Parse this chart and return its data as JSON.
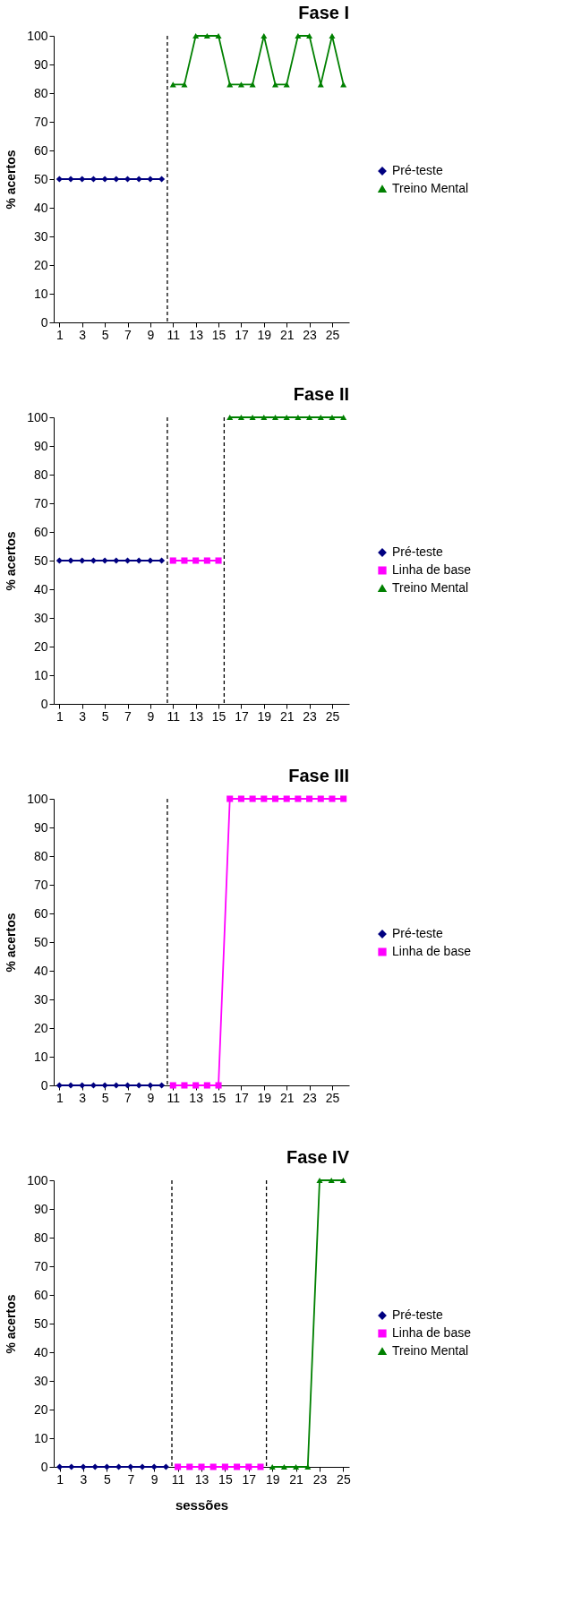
{
  "chart_data": [
    {
      "type": "line",
      "title": "Fase I",
      "ylabel": "% acertos",
      "xlim": [
        0.5,
        26.5
      ],
      "xticks": [
        1,
        3,
        5,
        7,
        9,
        11,
        13,
        15,
        17,
        19,
        21,
        23,
        25
      ],
      "ylim": [
        0,
        100
      ],
      "yticks": [
        0,
        10,
        20,
        30,
        40,
        50,
        60,
        70,
        80,
        90,
        100
      ],
      "legend": "right",
      "ref_lines": [
        {
          "axis": "x",
          "value": 10.5,
          "line_style": "dashed",
          "color": "#000000"
        }
      ],
      "series": [
        {
          "name": "Pré-teste",
          "color": "#000080",
          "marker": "diamond",
          "x": [
            1,
            2,
            3,
            4,
            5,
            6,
            7,
            8,
            9,
            10
          ],
          "values": [
            50,
            50,
            50,
            50,
            50,
            50,
            50,
            50,
            50,
            50
          ]
        },
        {
          "name": "Treino Mental",
          "color": "#008000",
          "marker": "triangle",
          "x": [
            11,
            12,
            13,
            14,
            15,
            16,
            17,
            18,
            19,
            20,
            21,
            22,
            23,
            24,
            25,
            26
          ],
          "values": [
            83,
            83,
            100,
            100,
            100,
            83,
            83,
            83,
            100,
            83,
            83,
            100,
            100,
            83,
            100,
            83
          ]
        }
      ]
    },
    {
      "type": "line",
      "title": "Fase II",
      "ylabel": "% acertos",
      "xlim": [
        0.5,
        26.5
      ],
      "xticks": [
        1,
        3,
        5,
        7,
        9,
        11,
        13,
        15,
        17,
        19,
        21,
        23,
        25
      ],
      "ylim": [
        0,
        100
      ],
      "yticks": [
        0,
        10,
        20,
        30,
        40,
        50,
        60,
        70,
        80,
        90,
        100
      ],
      "legend": "right",
      "ref_lines": [
        {
          "axis": "x",
          "value": 10.5,
          "line_style": "dashed",
          "color": "#000000"
        },
        {
          "axis": "x",
          "value": 15.5,
          "line_style": "dashed",
          "color": "#000000"
        }
      ],
      "series": [
        {
          "name": "Pré-teste",
          "color": "#000080",
          "marker": "diamond",
          "x": [
            1,
            2,
            3,
            4,
            5,
            6,
            7,
            8,
            9,
            10
          ],
          "values": [
            50,
            50,
            50,
            50,
            50,
            50,
            50,
            50,
            50,
            50
          ]
        },
        {
          "name": "Linha de base",
          "color": "#ff00ff",
          "marker": "square",
          "x": [
            11,
            12,
            13,
            14,
            15
          ],
          "values": [
            50,
            50,
            50,
            50,
            50
          ]
        },
        {
          "name": "Treino Mental",
          "color": "#008000",
          "marker": "triangle",
          "x": [
            16,
            17,
            18,
            19,
            20,
            21,
            22,
            23,
            24,
            25,
            26
          ],
          "values": [
            100,
            100,
            100,
            100,
            100,
            100,
            100,
            100,
            100,
            100,
            100
          ]
        }
      ]
    },
    {
      "type": "line",
      "title": "Fase III",
      "ylabel": "% acertos",
      "xlim": [
        0.5,
        26.5
      ],
      "xticks": [
        1,
        3,
        5,
        7,
        9,
        11,
        13,
        15,
        17,
        19,
        21,
        23,
        25
      ],
      "ylim": [
        0,
        100
      ],
      "yticks": [
        0,
        10,
        20,
        30,
        40,
        50,
        60,
        70,
        80,
        90,
        100
      ],
      "legend": "right",
      "ref_lines": [
        {
          "axis": "x",
          "value": 10.5,
          "line_style": "dashed",
          "color": "#000000"
        }
      ],
      "series": [
        {
          "name": "Pré-teste",
          "color": "#000080",
          "marker": "diamond",
          "x": [
            1,
            2,
            3,
            4,
            5,
            6,
            7,
            8,
            9,
            10
          ],
          "values": [
            0,
            0,
            0,
            0,
            0,
            0,
            0,
            0,
            0,
            0
          ]
        },
        {
          "name": "Linha de base",
          "color": "#ff00ff",
          "marker": "square",
          "x": [
            11,
            12,
            13,
            14,
            15,
            16,
            17,
            18,
            19,
            20,
            21,
            22,
            23,
            24,
            25,
            26
          ],
          "values": [
            0,
            0,
            0,
            0,
            0,
            100,
            100,
            100,
            100,
            100,
            100,
            100,
            100,
            100,
            100,
            100
          ]
        }
      ]
    },
    {
      "type": "line",
      "title": "Fase IV",
      "ylabel": "% acertos",
      "xlabel": "sessões",
      "xlim": [
        0.5,
        25.5
      ],
      "xticks": [
        1,
        3,
        5,
        7,
        9,
        11,
        13,
        15,
        17,
        19,
        21,
        23,
        25
      ],
      "ylim": [
        0,
        100
      ],
      "yticks": [
        0,
        10,
        20,
        30,
        40,
        50,
        60,
        70,
        80,
        90,
        100
      ],
      "legend": "right",
      "ref_lines": [
        {
          "axis": "x",
          "value": 10.5,
          "line_style": "dashed",
          "color": "#000000"
        },
        {
          "axis": "x",
          "value": 18.5,
          "line_style": "dashed",
          "color": "#000000"
        }
      ],
      "series": [
        {
          "name": "Pré-teste",
          "color": "#000080",
          "marker": "diamond",
          "x": [
            1,
            2,
            3,
            4,
            5,
            6,
            7,
            8,
            9,
            10
          ],
          "values": [
            0,
            0,
            0,
            0,
            0,
            0,
            0,
            0,
            0,
            0
          ]
        },
        {
          "name": "Linha de base",
          "color": "#ff00ff",
          "marker": "square",
          "x": [
            11,
            12,
            13,
            14,
            15,
            16,
            17,
            18
          ],
          "values": [
            0,
            0,
            0,
            0,
            0,
            0,
            0,
            0
          ]
        },
        {
          "name": "Treino Mental",
          "color": "#008000",
          "marker": "triangle",
          "x": [
            19,
            20,
            21,
            22,
            23,
            24,
            25
          ],
          "values": [
            0,
            0,
            0,
            0,
            100,
            100,
            100
          ]
        }
      ]
    }
  ]
}
